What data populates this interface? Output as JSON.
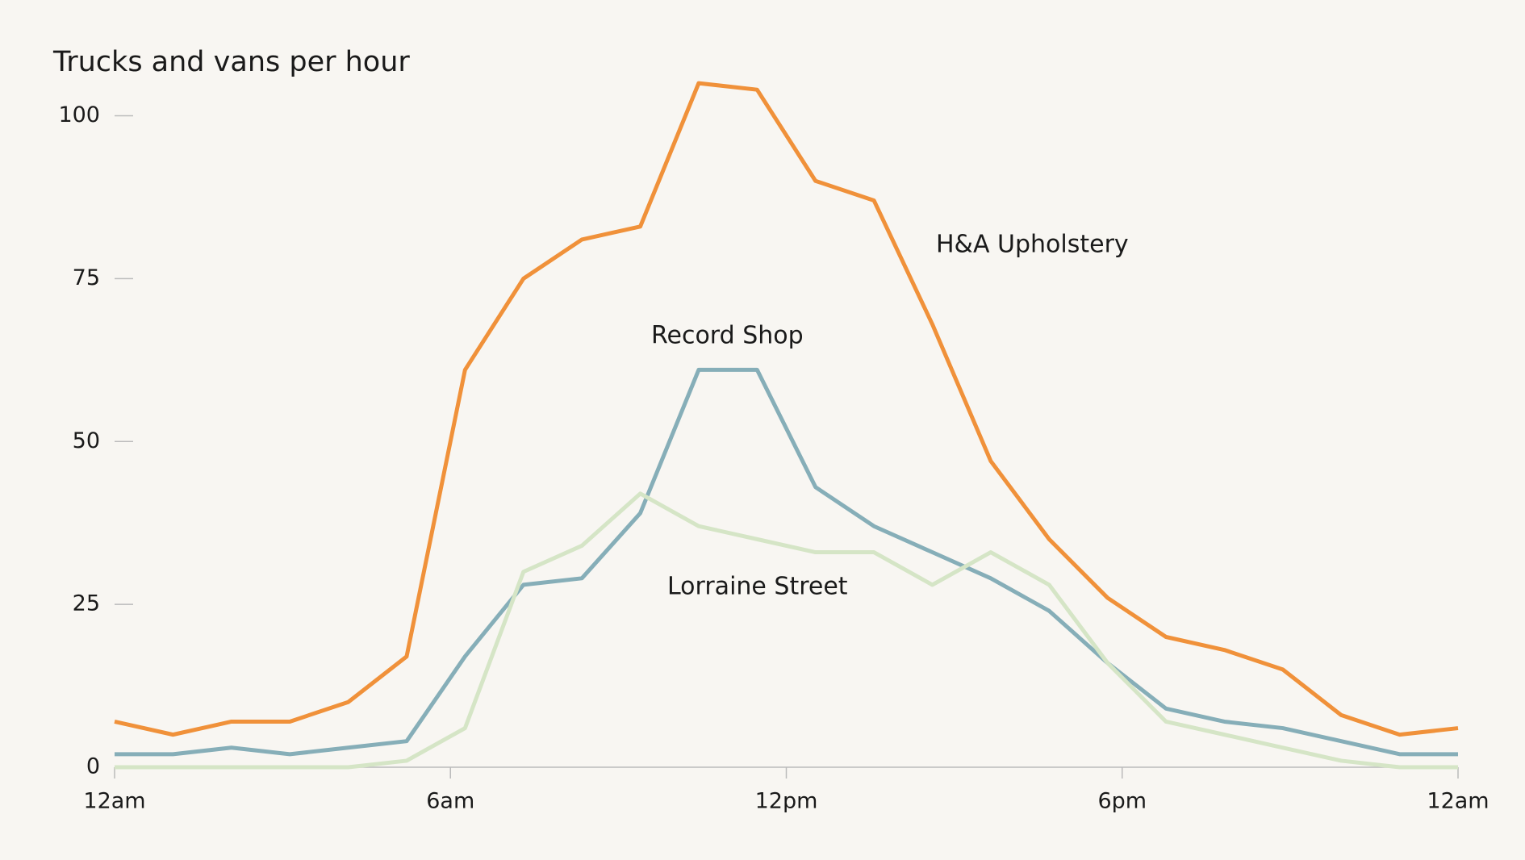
{
  "chart_data": {
    "type": "line",
    "title": "Trucks and vans per hour",
    "x": [
      0,
      1,
      2,
      3,
      4,
      5,
      6,
      7,
      8,
      9,
      10,
      11,
      12,
      13,
      14,
      15,
      16,
      17,
      18,
      19,
      20,
      21,
      22,
      23
    ],
    "xlim": [
      0,
      23
    ],
    "xticks": [
      {
        "value": 0,
        "label": "12am"
      },
      {
        "value": 5.75,
        "label": "6am"
      },
      {
        "value": 11.5,
        "label": "12pm"
      },
      {
        "value": 17.25,
        "label": "6pm"
      },
      {
        "value": 23,
        "label": "12am"
      }
    ],
    "ylim": [
      0,
      100
    ],
    "yticks": [
      0,
      25,
      50,
      75,
      100
    ],
    "series": [
      {
        "name": "H&A Upholstery",
        "color": "#f0913a",
        "values": [
          7,
          5,
          7,
          7,
          10,
          17,
          61,
          75,
          81,
          83,
          105,
          104,
          90,
          87,
          68,
          47,
          35,
          26,
          20,
          18,
          15,
          8,
          5,
          6
        ]
      },
      {
        "name": "Record Shop",
        "color": "#86aeb8",
        "values": [
          2,
          2,
          3,
          2,
          3,
          4,
          17,
          28,
          29,
          39,
          61,
          61,
          43,
          37,
          33,
          29,
          24,
          16,
          9,
          7,
          6,
          4,
          2,
          2
        ]
      },
      {
        "name": "Lorraine Street",
        "color": "#d5e5c6",
        "values": [
          0,
          0,
          0,
          0,
          0,
          1,
          6,
          30,
          34,
          42,
          37,
          35,
          33,
          33,
          28,
          33,
          28,
          16,
          7,
          5,
          3,
          1,
          0,
          0
        ]
      }
    ]
  }
}
